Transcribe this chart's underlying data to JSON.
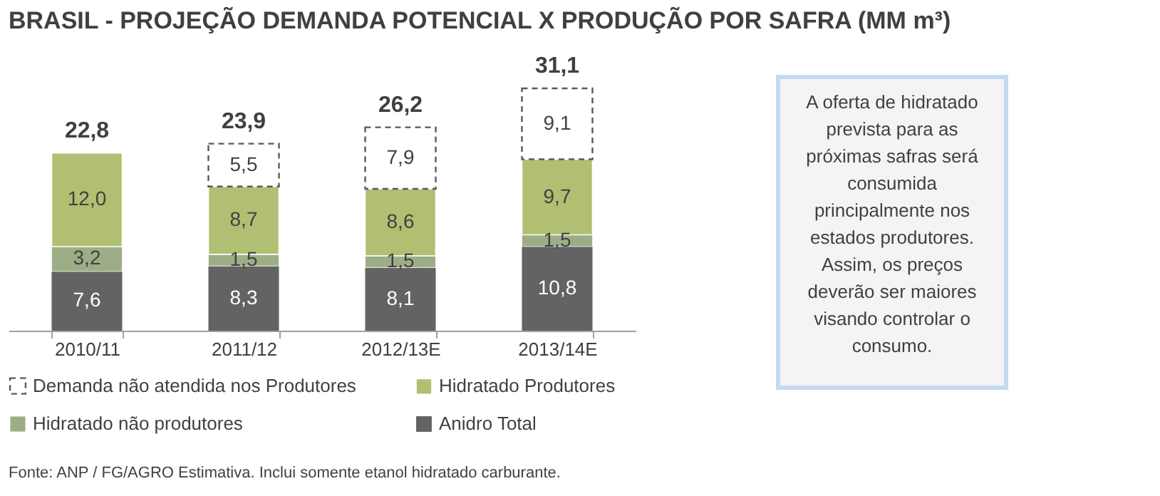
{
  "chart_data": {
    "type": "bar",
    "title": "BRASIL - PROJEÇÃO DEMANDA POTENCIAL X PRODUÇÃO POR SAFRA (MM m³)",
    "categories": [
      "2010/11",
      "2011/12",
      "2012/13E",
      "2013/14E"
    ],
    "stacked": true,
    "tick_labels": "x",
    "legend": "bottom",
    "series": [
      {
        "name": "Anidro Total",
        "color": "#636363",
        "values": [
          7.6,
          8.3,
          8.1,
          10.8
        ],
        "value_labels": [
          "7,6",
          "8,3",
          "8,1",
          "10,8"
        ]
      },
      {
        "name": "Hidratado não produtores",
        "color": "#9dae86",
        "values": [
          3.2,
          1.5,
          1.5,
          1.5
        ],
        "value_labels": [
          "3,2",
          "1,5",
          "1,5",
          "1,5"
        ]
      },
      {
        "name": "Hidratado Produtores",
        "color": "#b0bf72",
        "values": [
          12.0,
          8.7,
          8.6,
          9.7
        ],
        "value_labels": [
          "12,0",
          "8,7",
          "8,6",
          "9,7"
        ]
      },
      {
        "name": "Demanda não atendida nos Produtores",
        "color": "#ffffff",
        "line_style": "dashed",
        "values": [
          null,
          5.5,
          7.9,
          9.1
        ],
        "value_labels": [
          null,
          "5,5",
          "7,9",
          "9,1"
        ]
      }
    ],
    "totals": [
      "22,8",
      "23,9",
      "26,2",
      "31,1"
    ],
    "annotations": [
      "A oferta de hidratado\nprevista para as\npróximas safras será\nconsumida\nprincipalmente nos\nestados produtores.\nAssim, os  preços\ndeverão ser maiores\nvisando controlar o\nconsumo.",
      "Fonte: ANP / FG/AGRO Estimativa. Inclui somente etanol hidratado carburante."
    ]
  }
}
